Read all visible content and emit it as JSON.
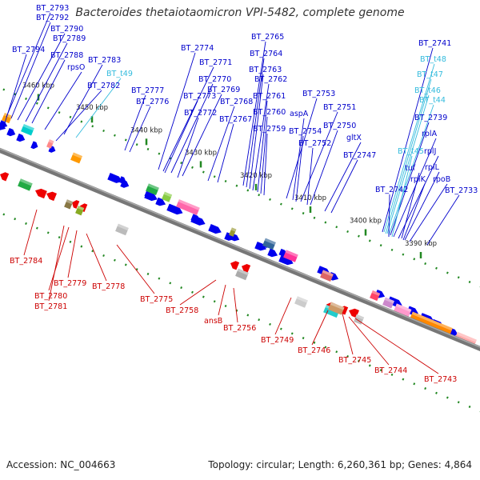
{
  "title": "Bacteroides thetaiotaomicron VPI-5482, complete genome",
  "footer": {
    "accession": "Accession: NC_004663",
    "summary": "Topology: circular; Length: 6,260,361 bp; Genes: 4,864"
  },
  "colors": {
    "forward_label": "#0000cc",
    "reverse_label": "#cc0000",
    "trna_label": "#33bbdd",
    "forward_gene": "#0000ee",
    "reverse_gene": "#ee0000",
    "backbone": "#777777",
    "tick": "#228822"
  },
  "ticks": [
    "3460 kbp",
    "3450 kbp",
    "3440 kbp",
    "3430 kbp",
    "3420 kbp",
    "3410 kbp",
    "3400 kbp",
    "3390 kbp"
  ],
  "forward_labels": [
    {
      "text": "BT_2793",
      "type": "gene"
    },
    {
      "text": "BT_2792",
      "type": "gene"
    },
    {
      "text": "BT_2790",
      "type": "gene"
    },
    {
      "text": "BT_2789",
      "type": "gene"
    },
    {
      "text": "BT_2794",
      "type": "gene"
    },
    {
      "text": "BT_2788",
      "type": "gene"
    },
    {
      "text": "rpsO",
      "type": "gene"
    },
    {
      "text": "BT_2783",
      "type": "gene"
    },
    {
      "text": "BT_t49",
      "type": "trna"
    },
    {
      "text": "BT_2782",
      "type": "gene"
    },
    {
      "text": "BT_2777",
      "type": "gene"
    },
    {
      "text": "BT_2776",
      "type": "gene"
    },
    {
      "text": "BT_2774",
      "type": "gene"
    },
    {
      "text": "BT_2771",
      "type": "gene"
    },
    {
      "text": "BT_2770",
      "type": "gene"
    },
    {
      "text": "BT_2773",
      "type": "gene"
    },
    {
      "text": "BT_2769",
      "type": "gene"
    },
    {
      "text": "BT_2772",
      "type": "gene"
    },
    {
      "text": "BT_2768",
      "type": "gene"
    },
    {
      "text": "BT_2767",
      "type": "gene"
    },
    {
      "text": "BT_2765",
      "type": "gene"
    },
    {
      "text": "BT_2764",
      "type": "gene"
    },
    {
      "text": "BT_2763",
      "type": "gene"
    },
    {
      "text": "BT_2762",
      "type": "gene"
    },
    {
      "text": "BT_2761",
      "type": "gene"
    },
    {
      "text": "BT_2760",
      "type": "gene"
    },
    {
      "text": "BT_2759",
      "type": "gene"
    },
    {
      "text": "BT_2753",
      "type": "gene"
    },
    {
      "text": "aspA",
      "type": "gene"
    },
    {
      "text": "BT_2751",
      "type": "gene"
    },
    {
      "text": "BT_2754",
      "type": "gene"
    },
    {
      "text": "BT_2750",
      "type": "gene"
    },
    {
      "text": "BT_2752",
      "type": "gene"
    },
    {
      "text": "gltX",
      "type": "gene"
    },
    {
      "text": "BT_2747",
      "type": "gene"
    },
    {
      "text": "BT_2741",
      "type": "gene"
    },
    {
      "text": "BT_t48",
      "type": "trna"
    },
    {
      "text": "BT_t47",
      "type": "trna"
    },
    {
      "text": "BT_t46",
      "type": "trna"
    },
    {
      "text": "BT_t44",
      "type": "trna"
    },
    {
      "text": "BT_2739",
      "type": "gene"
    },
    {
      "text": "rplA",
      "type": "gene"
    },
    {
      "text": "BT_t45",
      "type": "trna"
    },
    {
      "text": "rplJ",
      "type": "gene"
    },
    {
      "text": "tuf",
      "type": "gene"
    },
    {
      "text": "rplL",
      "type": "gene"
    },
    {
      "text": "rplK",
      "type": "gene"
    },
    {
      "text": "rpoB",
      "type": "gene"
    },
    {
      "text": "BT_2742",
      "type": "gene"
    },
    {
      "text": "BT_2733",
      "type": "gene"
    }
  ],
  "reverse_labels": [
    "BT_2784",
    "BT_2779",
    "BT_2780",
    "BT_2781",
    "BT_2778",
    "BT_2775",
    "BT_2758",
    "ansB",
    "BT_2756",
    "BT_2749",
    "BT_2746",
    "BT_2745",
    "BT_2744",
    "BT_2743"
  ]
}
